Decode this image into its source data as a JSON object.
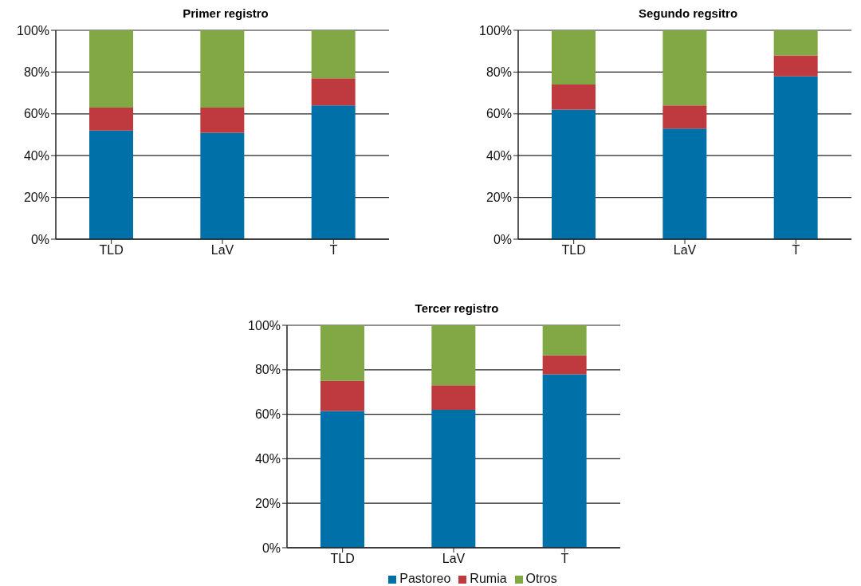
{
  "chart_data": [
    {
      "type": "bar",
      "title": "Primer registro",
      "stacked": true,
      "grid": "y",
      "categories": [
        "TLD",
        "LaV",
        "T"
      ],
      "ylim": [
        0,
        100
      ],
      "yticks": [
        {
          "value": 0,
          "label": "0%"
        },
        {
          "value": 20,
          "label": "20%"
        },
        {
          "value": 40,
          "label": "40%"
        },
        {
          "value": 60,
          "label": "60%"
        },
        {
          "value": 80,
          "label": "80%"
        },
        {
          "value": 100,
          "label": "100%"
        }
      ],
      "series": [
        {
          "color": "#0070a8",
          "values": [
            52,
            51,
            64
          ]
        },
        {
          "color": "#be3a3e",
          "values": [
            11,
            12,
            13
          ]
        },
        {
          "color": "#82a846",
          "values": [
            37,
            37,
            23
          ]
        }
      ]
    },
    {
      "type": "bar",
      "title": "Segundo regsitro",
      "stacked": true,
      "grid": "y",
      "categories": [
        "TLD",
        "LaV",
        "T"
      ],
      "ylim": [
        0,
        100
      ],
      "yticks": [
        {
          "value": 0,
          "label": "0%"
        },
        {
          "value": 20,
          "label": "20%"
        },
        {
          "value": 40,
          "label": "40%"
        },
        {
          "value": 60,
          "label": "60%"
        },
        {
          "value": 80,
          "label": "80%"
        },
        {
          "value": 100,
          "label": "100%"
        }
      ],
      "series": [
        {
          "color": "#0070a8",
          "values": [
            62,
            53,
            78
          ]
        },
        {
          "color": "#be3a3e",
          "values": [
            12,
            11,
            10
          ]
        },
        {
          "color": "#82a846",
          "values": [
            26,
            36,
            12
          ]
        }
      ]
    },
    {
      "type": "bar",
      "title": "Tercer registro",
      "stacked": true,
      "grid": "y",
      "legend": "bottom",
      "categories": [
        "TLD",
        "LaV",
        "T"
      ],
      "ylim": [
        0,
        100
      ],
      "yticks": [
        {
          "value": 0,
          "label": "0%"
        },
        {
          "value": 20,
          "label": "20%"
        },
        {
          "value": 40,
          "label": "40%"
        },
        {
          "value": 60,
          "label": "60%"
        },
        {
          "value": 80,
          "label": "80%"
        },
        {
          "value": 100,
          "label": "100%"
        }
      ],
      "series": [
        {
          "name": "Pastoreo",
          "color": "#0070a8",
          "values": [
            61.5,
            62,
            78
          ]
        },
        {
          "name": "Rumia",
          "color": "#be3a3e",
          "values": [
            13.5,
            11,
            8.5
          ]
        },
        {
          "name": "Otros",
          "color": "#82a846",
          "values": [
            25,
            27,
            13.5
          ]
        }
      ]
    }
  ]
}
